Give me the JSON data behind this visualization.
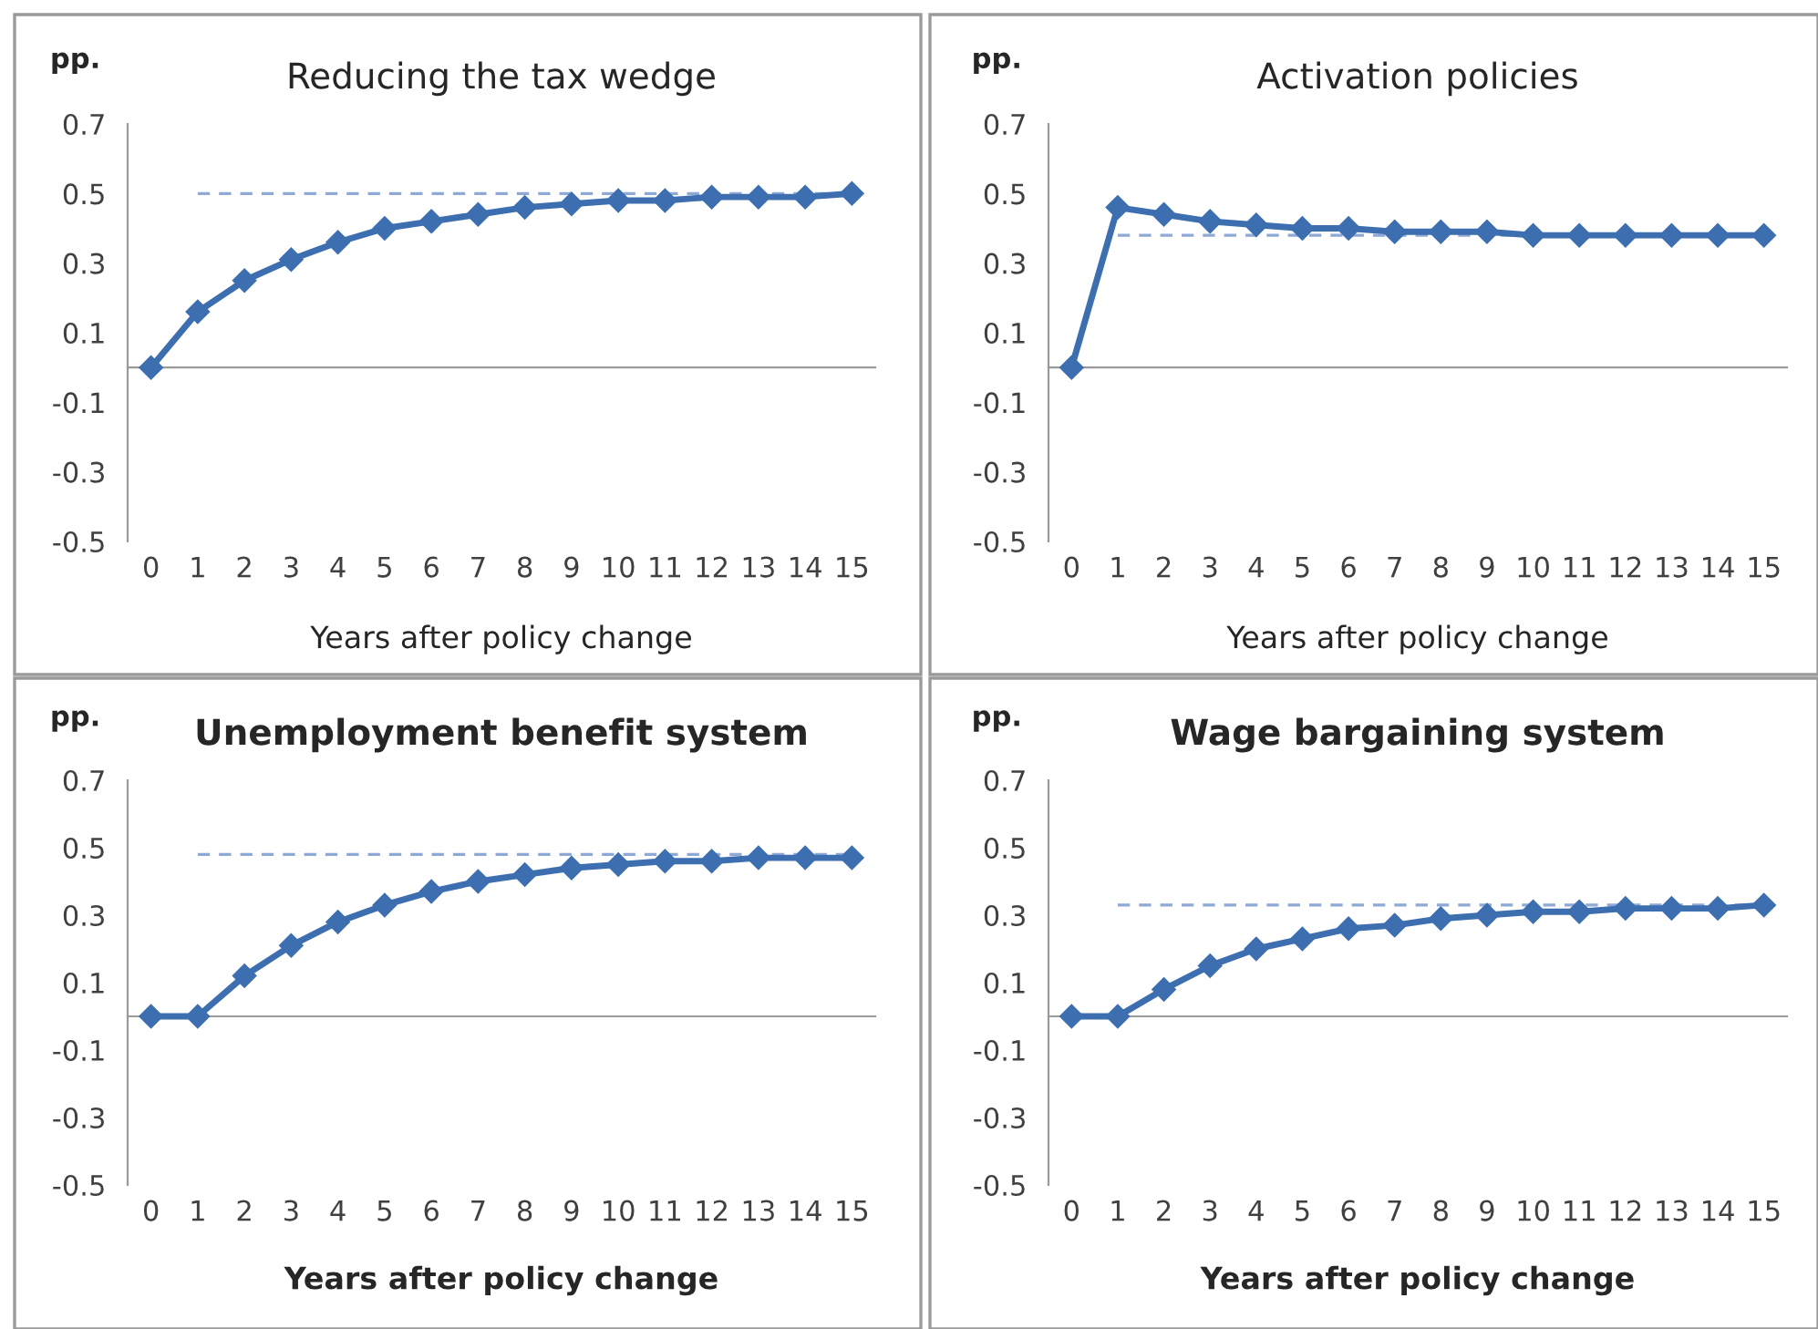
{
  "chart_data": [
    {
      "type": "line",
      "title": "Reducing the tax wedge",
      "ylabel": "pp.",
      "xlabel": "Years after policy change",
      "categories": [
        "0",
        "1",
        "2",
        "3",
        "4",
        "5",
        "6",
        "7",
        "8",
        "9",
        "10",
        "11",
        "12",
        "13",
        "14",
        "15"
      ],
      "ylim": [
        -0.5,
        0.7
      ],
      "yticks": [
        -0.5,
        -0.3,
        -0.1,
        0.1,
        0.3,
        0.5,
        0.7
      ],
      "grid": false,
      "legend": false,
      "series": [
        {
          "color": "#8fa9d6",
          "line_style": "dashed",
          "marker": "none",
          "values": [
            null,
            0.5,
            0.5,
            0.5,
            0.5,
            0.5,
            0.5,
            0.5,
            0.5,
            0.5,
            0.5,
            0.5,
            0.5,
            0.5,
            0.5,
            0.5
          ]
        },
        {
          "color": "#3d6fb0",
          "line_style": "solid",
          "marker": "diamond",
          "values": [
            0,
            0.16,
            0.25,
            0.31,
            0.36,
            0.4,
            0.42,
            0.44,
            0.46,
            0.47,
            0.48,
            0.48,
            0.49,
            0.49,
            0.49,
            0.5
          ]
        }
      ]
    },
    {
      "type": "line",
      "title": "Activation policies",
      "ylabel": "pp.",
      "xlabel": "Years after policy change",
      "categories": [
        "0",
        "1",
        "2",
        "3",
        "4",
        "5",
        "6",
        "7",
        "8",
        "9",
        "10",
        "11",
        "12",
        "13",
        "14",
        "15"
      ],
      "ylim": [
        -0.5,
        0.7
      ],
      "yticks": [
        -0.5,
        -0.3,
        -0.1,
        0.1,
        0.3,
        0.5,
        0.7
      ],
      "grid": false,
      "legend": false,
      "series": [
        {
          "color": "#8fa9d6",
          "line_style": "dashed",
          "marker": "none",
          "values": [
            null,
            0.38,
            0.38,
            0.38,
            0.38,
            0.38,
            0.38,
            0.38,
            0.38,
            0.38,
            0.38,
            0.38,
            0.38,
            0.38,
            0.38,
            0.38
          ]
        },
        {
          "color": "#3d6fb0",
          "line_style": "solid",
          "marker": "diamond",
          "values": [
            0,
            0.46,
            0.44,
            0.42,
            0.41,
            0.4,
            0.4,
            0.39,
            0.39,
            0.39,
            0.38,
            0.38,
            0.38,
            0.38,
            0.38,
            0.38
          ]
        }
      ]
    },
    {
      "type": "line",
      "title": "Unemployment benefit system",
      "ylabel": "pp.",
      "xlabel": "Years after policy change",
      "categories": [
        "0",
        "1",
        "2",
        "3",
        "4",
        "5",
        "6",
        "7",
        "8",
        "9",
        "10",
        "11",
        "12",
        "13",
        "14",
        "15"
      ],
      "ylim": [
        -0.5,
        0.7
      ],
      "yticks": [
        -0.5,
        -0.3,
        -0.1,
        0.1,
        0.3,
        0.5,
        0.7
      ],
      "grid": false,
      "legend": false,
      "series": [
        {
          "color": "#8fa9d6",
          "line_style": "dashed",
          "marker": "none",
          "values": [
            null,
            0.48,
            0.48,
            0.48,
            0.48,
            0.48,
            0.48,
            0.48,
            0.48,
            0.48,
            0.48,
            0.48,
            0.48,
            0.48,
            0.48,
            0.48
          ]
        },
        {
          "color": "#3d6fb0",
          "line_style": "solid",
          "marker": "diamond",
          "values": [
            0,
            0,
            0.12,
            0.21,
            0.28,
            0.33,
            0.37,
            0.4,
            0.42,
            0.44,
            0.45,
            0.46,
            0.46,
            0.47,
            0.47,
            0.47
          ]
        }
      ]
    },
    {
      "type": "line",
      "title": "Wage bargaining system",
      "ylabel": "pp.",
      "xlabel": "Years after policy change",
      "categories": [
        "0",
        "1",
        "2",
        "3",
        "4",
        "5",
        "6",
        "7",
        "8",
        "9",
        "10",
        "11",
        "12",
        "13",
        "14",
        "15"
      ],
      "ylim": [
        -0.5,
        0.7
      ],
      "yticks": [
        -0.5,
        -0.3,
        -0.1,
        0.1,
        0.3,
        0.5,
        0.7
      ],
      "grid": false,
      "legend": false,
      "series": [
        {
          "color": "#8fa9d6",
          "line_style": "dashed",
          "marker": "none",
          "values": [
            null,
            0.33,
            0.33,
            0.33,
            0.33,
            0.33,
            0.33,
            0.33,
            0.33,
            0.33,
            0.33,
            0.33,
            0.33,
            0.33,
            0.33,
            0.33
          ]
        },
        {
          "color": "#3d6fb0",
          "line_style": "solid",
          "marker": "diamond",
          "values": [
            0,
            0,
            0.08,
            0.15,
            0.2,
            0.23,
            0.26,
            0.27,
            0.29,
            0.3,
            0.31,
            0.31,
            0.32,
            0.32,
            0.32,
            0.33
          ]
        }
      ]
    }
  ]
}
